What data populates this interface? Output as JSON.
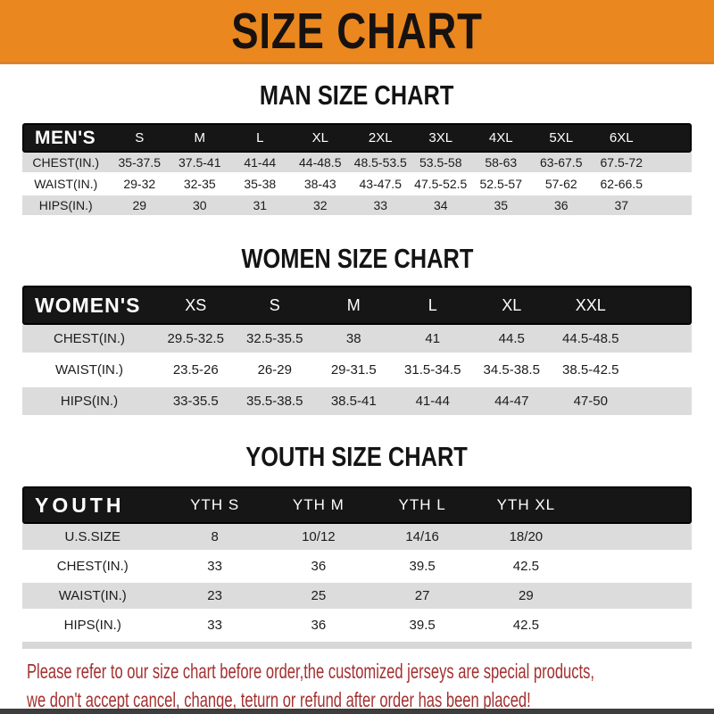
{
  "banner": {
    "title": "SIZE CHART",
    "bg_color": "#EA871E"
  },
  "colors": {
    "header_bar": "#161616",
    "row_stripe": "#DCDCDC",
    "footer_text": "#A43030",
    "bottom_strip": "#3D3D3D"
  },
  "sections": [
    {
      "id": "men",
      "title": "MAN SIZE CHART",
      "header_label": "MEN'S",
      "columns": [
        "S",
        "M",
        "L",
        "XL",
        "2XL",
        "3XL",
        "4XL",
        "5XL",
        "6XL"
      ],
      "rows": [
        {
          "label": "CHEST(IN.)",
          "values": [
            "35-37.5",
            "37.5-41",
            "41-44",
            "44-48.5",
            "48.5-53.5",
            "53.5-58",
            "58-63",
            "63-67.5",
            "67.5-72"
          ]
        },
        {
          "label": "WAIST(IN.)",
          "values": [
            "29-32",
            "32-35",
            "35-38",
            "38-43",
            "43-47.5",
            "47.5-52.5",
            "52.5-57",
            "57-62",
            "62-66.5"
          ]
        },
        {
          "label": "HIPS(IN.)",
          "values": [
            "29",
            "30",
            "31",
            "32",
            "33",
            "34",
            "35",
            "36",
            "37"
          ]
        }
      ]
    },
    {
      "id": "women",
      "title": "WOMEN SIZE CHART",
      "header_label": "WOMEN'S",
      "columns": [
        "XS",
        "S",
        "M",
        "L",
        "XL",
        "XXL"
      ],
      "rows": [
        {
          "label": "CHEST(IN.)",
          "values": [
            "29.5-32.5",
            "32.5-35.5",
            "38",
            "41",
            "44.5",
            "44.5-48.5"
          ]
        },
        {
          "label": "WAIST(IN.)",
          "values": [
            "23.5-26",
            "26-29",
            "29-31.5",
            "31.5-34.5",
            "34.5-38.5",
            "38.5-42.5"
          ]
        },
        {
          "label": "HIPS(IN.)",
          "values": [
            "33-35.5",
            "35.5-38.5",
            "38.5-41",
            "41-44",
            "44-47",
            "47-50"
          ]
        }
      ]
    },
    {
      "id": "youth",
      "title": "YOUTH SIZE CHART",
      "header_label": "YOUTH",
      "columns": [
        "YTH S",
        "YTH M",
        "YTH L",
        "YTH XL"
      ],
      "rows": [
        {
          "label": "U.S.SIZE",
          "values": [
            "8",
            "10/12",
            "14/16",
            "18/20"
          ]
        },
        {
          "label": "CHEST(IN.)",
          "values": [
            "33",
            "36",
            "39.5",
            "42.5"
          ]
        },
        {
          "label": "WAIST(IN.)",
          "values": [
            "23",
            "25",
            "27",
            "29"
          ]
        },
        {
          "label": "HIPS(IN.)",
          "values": [
            "33",
            "36",
            "39.5",
            "42.5"
          ]
        }
      ]
    }
  ],
  "footer": {
    "line1": "Please refer to our size chart before order,the customized jerseys are special products,",
    "line2": "we don't accept cancel, change, teturn or refund after order has been placed!"
  }
}
